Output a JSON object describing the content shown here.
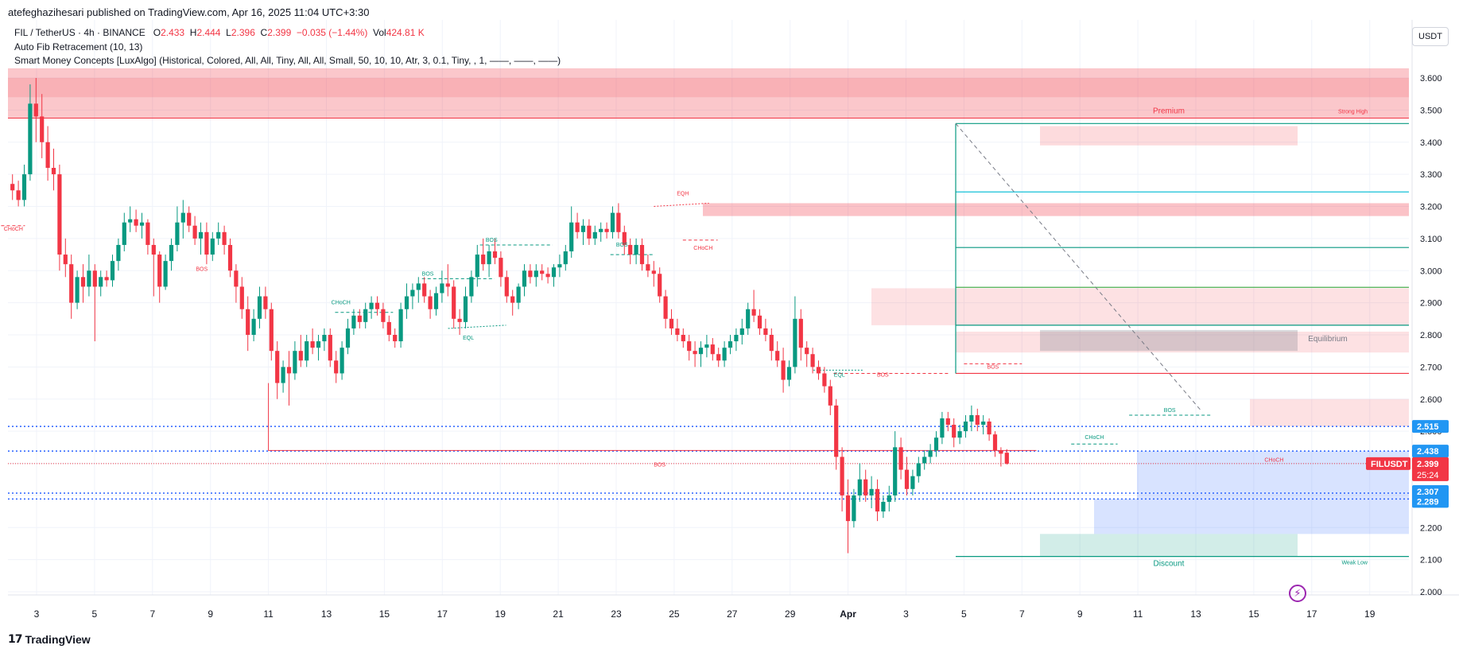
{
  "header": {
    "published": "atefeghazihesari published on TradingView.com, Apr 16, 2025 11:04 UTC+3:30",
    "symbol": "FIL / TetherUS · 4h · BINANCE",
    "ohlc": {
      "o_label": "O",
      "o": "2.433",
      "h_label": "H",
      "h": "2.444",
      "l_label": "L",
      "l": "2.396",
      "c_label": "C",
      "c": "2.399",
      "change": "−0.035 (−1.44%)",
      "vol_label": "Vol",
      "vol": "424.81 K"
    },
    "indicator1": "Auto Fib Retracement (10, 13)",
    "indicator2": "Smart Money Concepts [LuxAlgo] (Historical, Colored, All, All, Tiny, All, All, Small, 50, 10, 10, Atr, 3, 0.1, Tiny, , 1, ——, ——, ——)"
  },
  "brand": {
    "name": "TradingView",
    "logo": "17"
  },
  "currency": "USDT",
  "colors": {
    "up": "#089981",
    "down": "#f23645",
    "fib_blue": "#2962ff",
    "grid": "#f0f3fa"
  },
  "chart_data": {
    "type": "candlestick",
    "ylim": [
      1.95,
      3.7
    ],
    "y_ticks": [
      "3.600",
      "3.500",
      "3.400",
      "3.300",
      "3.200",
      "3.100",
      "3.000",
      "2.900",
      "2.800",
      "2.700",
      "2.600",
      "2.500",
      "2.400",
      "2.300",
      "2.200",
      "2.100",
      "2.000"
    ],
    "y_tick_values": [
      3.6,
      3.5,
      3.4,
      3.3,
      3.2,
      3.1,
      3.0,
      2.9,
      2.8,
      2.7,
      2.6,
      2.5,
      2.4,
      2.3,
      2.2,
      2.1,
      2.0
    ],
    "x_ticks": [
      "3",
      "5",
      "7",
      "9",
      "11",
      "13",
      "15",
      "17",
      "19",
      "21",
      "23",
      "25",
      "27",
      "29",
      "Apr",
      "3",
      "5",
      "7",
      "9",
      "11",
      "13",
      "15",
      "17",
      "19"
    ],
    "x_tick_day_index": [
      1,
      3,
      5,
      7,
      9,
      11,
      13,
      15,
      17,
      19,
      21,
      23,
      25,
      27,
      29,
      31,
      33,
      35,
      37,
      39,
      41,
      43,
      45,
      47
    ],
    "price_labels": [
      {
        "text": "2.515",
        "value": 2.515,
        "color": "#2196f3"
      },
      {
        "text": "2.438",
        "value": 2.438,
        "color": "#2196f3"
      },
      {
        "text": "2.399",
        "value": 2.399,
        "color": "#f23645",
        "symbol": "FILUSDT",
        "countdown": "25:24"
      },
      {
        "text": "2.307",
        "value": 2.307,
        "color": "#2196f3"
      },
      {
        "text": "2.289",
        "value": 2.289,
        "color": "#2196f3"
      }
    ],
    "zone_labels": {
      "premium": "Premium",
      "equilibrium": "Equilibrium",
      "discount": "Discount",
      "strong_high": "Strong High",
      "weak_low": "Weak Low"
    },
    "structure_labels": [
      {
        "text": "CHoCH",
        "day": 0.2,
        "value": 3.125,
        "color": "#f23645"
      },
      {
        "text": "BOS",
        "day": 6.7,
        "value": 3.0,
        "color": "#f23645"
      },
      {
        "text": "CHoCH",
        "day": 11.5,
        "value": 2.895,
        "color": "#089981"
      },
      {
        "text": "BOS",
        "day": 14.5,
        "value": 2.985,
        "color": "#089981"
      },
      {
        "text": "EQL",
        "day": 15.9,
        "value": 2.785,
        "color": "#089981"
      },
      {
        "text": "BOS",
        "day": 16.7,
        "value": 3.09,
        "color": "#089981"
      },
      {
        "text": "BOS",
        "day": 21.2,
        "value": 3.075,
        "color": "#089981"
      },
      {
        "text": "EQH",
        "day": 23.3,
        "value": 3.235,
        "color": "#f23645"
      },
      {
        "text": "CHoCH",
        "day": 24.0,
        "value": 3.065,
        "color": "#f23645"
      },
      {
        "text": "EQL",
        "day": 28.7,
        "value": 2.67,
        "color": "#089981"
      },
      {
        "text": "BOS",
        "day": 30.2,
        "value": 2.67,
        "color": "#f23645"
      },
      {
        "text": "BOS",
        "day": 34.0,
        "value": 2.695,
        "color": "#f23645"
      },
      {
        "text": "BOS",
        "day": 22.5,
        "value": 2.39,
        "color": "#f23645"
      },
      {
        "text": "CHoCH",
        "day": 37.5,
        "value": 2.475,
        "color": "#089981"
      },
      {
        "text": "BOS",
        "day": 40.1,
        "value": 2.56,
        "color": "#089981"
      },
      {
        "text": "CHoCH",
        "day": 43.7,
        "value": 2.405,
        "color": "#f23645"
      }
    ],
    "candles": [
      [
        3.27,
        3.3,
        3.22,
        3.25
      ],
      [
        3.25,
        3.28,
        3.2,
        3.22
      ],
      [
        3.22,
        3.33,
        3.2,
        3.3
      ],
      [
        3.3,
        3.58,
        3.28,
        3.52
      ],
      [
        3.52,
        3.6,
        3.4,
        3.48
      ],
      [
        3.48,
        3.55,
        3.35,
        3.4
      ],
      [
        3.4,
        3.45,
        3.28,
        3.32
      ],
      [
        3.32,
        3.38,
        3.25,
        3.3
      ],
      [
        3.3,
        3.33,
        3.0,
        3.05
      ],
      [
        3.05,
        3.1,
        2.98,
        3.02
      ],
      [
        3.02,
        3.05,
        2.85,
        2.9
      ],
      [
        2.9,
        3.0,
        2.88,
        2.98
      ],
      [
        2.98,
        3.02,
        2.9,
        2.95
      ],
      [
        2.95,
        3.05,
        2.92,
        3.0
      ],
      [
        3.0,
        3.02,
        2.78,
        2.95
      ],
      [
        2.95,
        3.0,
        2.92,
        2.98
      ],
      [
        2.98,
        3.0,
        2.95,
        2.97
      ],
      [
        2.97,
        3.05,
        2.95,
        3.03
      ],
      [
        3.03,
        3.1,
        3.0,
        3.08
      ],
      [
        3.08,
        3.18,
        3.06,
        3.15
      ],
      [
        3.15,
        3.2,
        3.12,
        3.16
      ],
      [
        3.16,
        3.19,
        3.12,
        3.14
      ],
      [
        3.14,
        3.18,
        3.1,
        3.15
      ],
      [
        3.15,
        3.16,
        3.05,
        3.08
      ],
      [
        3.08,
        3.1,
        2.92,
        3.05
      ],
      [
        3.05,
        3.06,
        2.9,
        2.95
      ],
      [
        2.95,
        3.05,
        2.94,
        3.03
      ],
      [
        3.03,
        3.1,
        3.0,
        3.08
      ],
      [
        3.08,
        3.2,
        3.06,
        3.15
      ],
      [
        3.15,
        3.22,
        3.1,
        3.18
      ],
      [
        3.18,
        3.2,
        3.12,
        3.14
      ],
      [
        3.14,
        3.17,
        3.08,
        3.1
      ],
      [
        3.1,
        3.15,
        3.05,
        3.12
      ],
      [
        3.12,
        3.15,
        3.02,
        3.05
      ],
      [
        3.05,
        3.12,
        3.03,
        3.1
      ],
      [
        3.1,
        3.15,
        3.08,
        3.12
      ],
      [
        3.12,
        3.14,
        3.05,
        3.08
      ],
      [
        3.08,
        3.1,
        2.98,
        3.0
      ],
      [
        3.0,
        3.02,
        2.9,
        2.95
      ],
      [
        2.95,
        2.98,
        2.85,
        2.88
      ],
      [
        2.88,
        2.92,
        2.75,
        2.8
      ],
      [
        2.8,
        2.88,
        2.78,
        2.85
      ],
      [
        2.85,
        2.95,
        2.82,
        2.92
      ],
      [
        2.92,
        2.95,
        2.85,
        2.88
      ],
      [
        2.88,
        2.9,
        2.72,
        2.75
      ],
      [
        2.75,
        2.78,
        2.6,
        2.65
      ],
      [
        2.65,
        2.72,
        2.62,
        2.7
      ],
      [
        2.7,
        2.75,
        2.58,
        2.68
      ],
      [
        2.68,
        2.78,
        2.66,
        2.75
      ],
      [
        2.75,
        2.8,
        2.7,
        2.72
      ],
      [
        2.72,
        2.8,
        2.7,
        2.78
      ],
      [
        2.78,
        2.82,
        2.74,
        2.76
      ],
      [
        2.76,
        2.8,
        2.72,
        2.78
      ],
      [
        2.78,
        2.82,
        2.75,
        2.8
      ],
      [
        2.8,
        2.82,
        2.7,
        2.72
      ],
      [
        2.72,
        2.75,
        2.65,
        2.68
      ],
      [
        2.68,
        2.78,
        2.66,
        2.76
      ],
      [
        2.76,
        2.85,
        2.74,
        2.82
      ],
      [
        2.82,
        2.88,
        2.8,
        2.86
      ],
      [
        2.86,
        2.88,
        2.82,
        2.84
      ],
      [
        2.84,
        2.9,
        2.82,
        2.88
      ],
      [
        2.88,
        2.92,
        2.85,
        2.9
      ],
      [
        2.9,
        2.92,
        2.86,
        2.88
      ],
      [
        2.88,
        2.9,
        2.82,
        2.84
      ],
      [
        2.84,
        2.86,
        2.78,
        2.8
      ],
      [
        2.8,
        2.82,
        2.76,
        2.78
      ],
      [
        2.78,
        2.9,
        2.76,
        2.88
      ],
      [
        2.88,
        2.96,
        2.85,
        2.92
      ],
      [
        2.92,
        2.96,
        2.88,
        2.94
      ],
      [
        2.94,
        2.98,
        2.9,
        2.96
      ],
      [
        2.96,
        2.98,
        2.9,
        2.92
      ],
      [
        2.92,
        2.94,
        2.85,
        2.88
      ],
      [
        2.88,
        2.95,
        2.86,
        2.93
      ],
      [
        2.93,
        3.0,
        2.9,
        2.96
      ],
      [
        2.96,
        3.02,
        2.92,
        2.95
      ],
      [
        2.95,
        2.97,
        2.82,
        2.85
      ],
      [
        2.85,
        2.88,
        2.8,
        2.84
      ],
      [
        2.84,
        2.95,
        2.82,
        2.92
      ],
      [
        2.92,
        3.0,
        2.9,
        2.98
      ],
      [
        2.98,
        3.08,
        2.95,
        3.05
      ],
      [
        3.05,
        3.1,
        3.0,
        3.02
      ],
      [
        3.02,
        3.08,
        2.98,
        3.06
      ],
      [
        3.06,
        3.1,
        3.02,
        3.04
      ],
      [
        3.04,
        3.06,
        2.95,
        2.98
      ],
      [
        2.98,
        3.0,
        2.9,
        2.92
      ],
      [
        2.92,
        2.94,
        2.86,
        2.9
      ],
      [
        2.9,
        2.96,
        2.88,
        2.95
      ],
      [
        2.95,
        3.02,
        2.92,
        3.0
      ],
      [
        3.0,
        3.02,
        2.96,
        2.98
      ],
      [
        2.98,
        3.02,
        2.95,
        3.0
      ],
      [
        3.0,
        3.02,
        2.97,
        2.99
      ],
      [
        2.99,
        3.01,
        2.96,
        2.98
      ],
      [
        2.98,
        3.02,
        2.95,
        3.01
      ],
      [
        3.01,
        3.05,
        2.98,
        3.02
      ],
      [
        3.02,
        3.08,
        3.0,
        3.06
      ],
      [
        3.06,
        3.2,
        3.04,
        3.15
      ],
      [
        3.15,
        3.18,
        3.1,
        3.12
      ],
      [
        3.12,
        3.16,
        3.08,
        3.14
      ],
      [
        3.14,
        3.16,
        3.08,
        3.1
      ],
      [
        3.1,
        3.14,
        3.08,
        3.12
      ],
      [
        3.12,
        3.15,
        3.09,
        3.13
      ],
      [
        3.13,
        3.15,
        3.1,
        3.12
      ],
      [
        3.12,
        3.2,
        3.1,
        3.18
      ],
      [
        3.18,
        3.21,
        3.1,
        3.12
      ],
      [
        3.12,
        3.14,
        3.05,
        3.08
      ],
      [
        3.08,
        3.1,
        3.02,
        3.05
      ],
      [
        3.05,
        3.1,
        3.02,
        3.08
      ],
      [
        3.08,
        3.1,
        3.0,
        3.02
      ],
      [
        3.02,
        3.05,
        2.98,
        3.0
      ],
      [
        3.0,
        3.03,
        2.95,
        2.99
      ],
      [
        2.99,
        3.01,
        2.9,
        2.92
      ],
      [
        2.92,
        2.94,
        2.82,
        2.85
      ],
      [
        2.85,
        2.88,
        2.8,
        2.82
      ],
      [
        2.82,
        2.85,
        2.78,
        2.8
      ],
      [
        2.8,
        2.82,
        2.76,
        2.78
      ],
      [
        2.78,
        2.8,
        2.72,
        2.75
      ],
      [
        2.75,
        2.78,
        2.7,
        2.74
      ],
      [
        2.74,
        2.78,
        2.7,
        2.76
      ],
      [
        2.76,
        2.8,
        2.73,
        2.77
      ],
      [
        2.77,
        2.79,
        2.72,
        2.74
      ],
      [
        2.74,
        2.76,
        2.7,
        2.72
      ],
      [
        2.72,
        2.78,
        2.7,
        2.76
      ],
      [
        2.76,
        2.8,
        2.74,
        2.78
      ],
      [
        2.78,
        2.82,
        2.75,
        2.8
      ],
      [
        2.8,
        2.85,
        2.77,
        2.82
      ],
      [
        2.82,
        2.9,
        2.8,
        2.88
      ],
      [
        2.88,
        2.94,
        2.84,
        2.86
      ],
      [
        2.86,
        2.88,
        2.8,
        2.82
      ],
      [
        2.82,
        2.85,
        2.78,
        2.8
      ],
      [
        2.8,
        2.82,
        2.72,
        2.75
      ],
      [
        2.75,
        2.78,
        2.7,
        2.72
      ],
      [
        2.72,
        2.76,
        2.62,
        2.66
      ],
      [
        2.66,
        2.72,
        2.64,
        2.7
      ],
      [
        2.7,
        2.92,
        2.68,
        2.85
      ],
      [
        2.85,
        2.88,
        2.72,
        2.76
      ],
      [
        2.76,
        2.78,
        2.7,
        2.74
      ],
      [
        2.74,
        2.76,
        2.68,
        2.7
      ],
      [
        2.7,
        2.72,
        2.66,
        2.68
      ],
      [
        2.68,
        2.7,
        2.62,
        2.64
      ],
      [
        2.64,
        2.66,
        2.55,
        2.58
      ],
      [
        2.58,
        2.6,
        2.38,
        2.42
      ],
      [
        2.42,
        2.45,
        2.25,
        2.3
      ],
      [
        2.3,
        2.35,
        2.12,
        2.22
      ],
      [
        2.22,
        2.32,
        2.2,
        2.3
      ],
      [
        2.3,
        2.4,
        2.28,
        2.35
      ],
      [
        2.35,
        2.38,
        2.28,
        2.3
      ],
      [
        2.3,
        2.36,
        2.26,
        2.32
      ],
      [
        2.32,
        2.35,
        2.22,
        2.25
      ],
      [
        2.25,
        2.3,
        2.23,
        2.28
      ],
      [
        2.28,
        2.33,
        2.25,
        2.3
      ],
      [
        2.3,
        2.5,
        2.28,
        2.45
      ],
      [
        2.45,
        2.48,
        2.35,
        2.38
      ],
      [
        2.38,
        2.42,
        2.3,
        2.32
      ],
      [
        2.32,
        2.38,
        2.3,
        2.36
      ],
      [
        2.36,
        2.42,
        2.34,
        2.4
      ],
      [
        2.4,
        2.44,
        2.38,
        2.42
      ],
      [
        2.42,
        2.46,
        2.4,
        2.44
      ],
      [
        2.44,
        2.5,
        2.42,
        2.48
      ],
      [
        2.48,
        2.56,
        2.46,
        2.54
      ],
      [
        2.54,
        2.56,
        2.5,
        2.52
      ],
      [
        2.52,
        2.54,
        2.45,
        2.48
      ],
      [
        2.48,
        2.52,
        2.46,
        2.5
      ],
      [
        2.5,
        2.55,
        2.48,
        2.53
      ],
      [
        2.53,
        2.58,
        2.5,
        2.55
      ],
      [
        2.55,
        2.57,
        2.5,
        2.52
      ],
      [
        2.52,
        2.55,
        2.49,
        2.53
      ],
      [
        2.53,
        2.54,
        2.47,
        2.49
      ],
      [
        2.49,
        2.5,
        2.42,
        2.44
      ],
      [
        2.44,
        2.45,
        2.39,
        2.43
      ],
      [
        2.433,
        2.444,
        2.396,
        2.399
      ]
    ]
  }
}
